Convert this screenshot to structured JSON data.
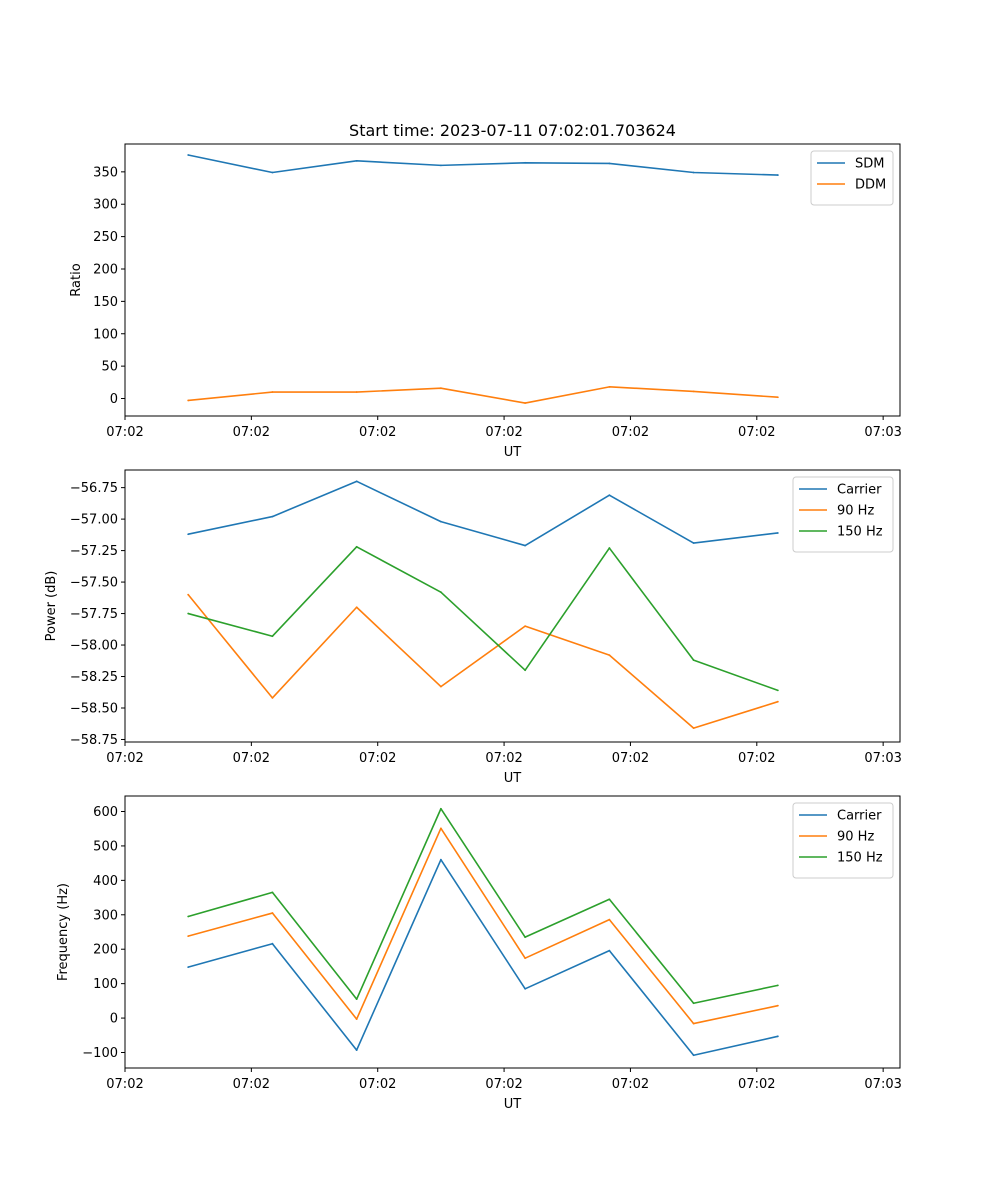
{
  "colors": {
    "c0": "#1f77b4",
    "c1": "#ff7f0e",
    "c2": "#2ca02c"
  },
  "chart_data": [
    {
      "type": "line",
      "title": "Start time: 2023-07-11 07:02:01.703624",
      "xlabel": "UT",
      "ylabel": "Ratio",
      "xlim": [
        0,
        9.2
      ],
      "x": [
        0.75,
        1.75,
        2.75,
        3.75,
        4.75,
        5.75,
        6.75,
        7.75
      ],
      "xticks": [
        0,
        1.5,
        3,
        4.5,
        6,
        7.5,
        9
      ],
      "xticklabels": [
        "07:02",
        "07:02",
        "07:02",
        "07:02",
        "07:02",
        "07:02",
        "07:03"
      ],
      "ylim": [
        -27,
        393
      ],
      "yticks": [
        0,
        50,
        100,
        150,
        200,
        250,
        300,
        350
      ],
      "yticklabels": [
        "0",
        "50",
        "100",
        "150",
        "200",
        "250",
        "300",
        "350"
      ],
      "legend_loc": "upper right",
      "series": [
        {
          "name": "SDM",
          "color": "#1f77b4",
          "values": [
            376,
            349,
            367,
            360,
            364,
            363,
            349,
            345
          ]
        },
        {
          "name": "DDM",
          "color": "#ff7f0e",
          "values": [
            -3,
            10,
            10,
            16,
            -7,
            18,
            11,
            2
          ]
        }
      ]
    },
    {
      "type": "line",
      "title": "",
      "xlabel": "UT",
      "ylabel": "Power (dB)",
      "xlim": [
        0,
        9.2
      ],
      "x": [
        0.75,
        1.75,
        2.75,
        3.75,
        4.75,
        5.75,
        6.75,
        7.75
      ],
      "xticks": [
        0,
        1.5,
        3,
        4.5,
        6,
        7.5,
        9
      ],
      "xticklabels": [
        "07:02",
        "07:02",
        "07:02",
        "07:02",
        "07:02",
        "07:02",
        "07:03"
      ],
      "ylim": [
        -58.77,
        -56.61
      ],
      "yticks": [
        -58.75,
        -58.5,
        -58.25,
        -58.0,
        -57.75,
        -57.5,
        -57.25,
        -57.0,
        -56.75
      ],
      "yticklabels": [
        "−58.75",
        "−58.50",
        "−58.25",
        "−58.00",
        "−57.75",
        "−57.50",
        "−57.25",
        "−57.00",
        "−56.75"
      ],
      "legend_loc": "upper right",
      "series": [
        {
          "name": "Carrier",
          "color": "#1f77b4",
          "values": [
            -57.12,
            -56.98,
            -56.7,
            -57.02,
            -57.21,
            -56.81,
            -57.19,
            -57.11
          ]
        },
        {
          "name": "90 Hz",
          "color": "#ff7f0e",
          "values": [
            -57.6,
            -58.42,
            -57.7,
            -58.33,
            -57.85,
            -58.08,
            -58.66,
            -58.45
          ]
        },
        {
          "name": "150 Hz",
          "color": "#2ca02c",
          "values": [
            -57.75,
            -57.93,
            -57.22,
            -57.58,
            -58.2,
            -57.23,
            -58.12,
            -58.36
          ]
        }
      ]
    },
    {
      "type": "line",
      "title": "",
      "xlabel": "UT",
      "ylabel": "Frequency (Hz)",
      "xlim": [
        0,
        9.2
      ],
      "x": [
        0.75,
        1.75,
        2.75,
        3.75,
        4.75,
        5.75,
        6.75,
        7.75
      ],
      "xticks": [
        0,
        1.5,
        3,
        4.5,
        6,
        7.5,
        9
      ],
      "xticklabels": [
        "07:02",
        "07:02",
        "07:02",
        "07:02",
        "07:02",
        "07:02",
        "07:03"
      ],
      "ylim": [
        -145,
        645
      ],
      "yticks": [
        -100,
        0,
        100,
        200,
        300,
        400,
        500,
        600
      ],
      "yticklabels": [
        "−100",
        "0",
        "100",
        "200",
        "300",
        "400",
        "500",
        "600"
      ],
      "legend_loc": "upper right",
      "series": [
        {
          "name": "Carrier",
          "color": "#1f77b4",
          "values": [
            148,
            216,
            -93,
            460,
            85,
            196,
            -108,
            -53
          ]
        },
        {
          "name": "90 Hz",
          "color": "#ff7f0e",
          "values": [
            238,
            305,
            -3,
            551,
            174,
            286,
            -16,
            36
          ]
        },
        {
          "name": "150 Hz",
          "color": "#2ca02c",
          "values": [
            295,
            365,
            55,
            608,
            235,
            345,
            43,
            95
          ]
        }
      ]
    }
  ]
}
